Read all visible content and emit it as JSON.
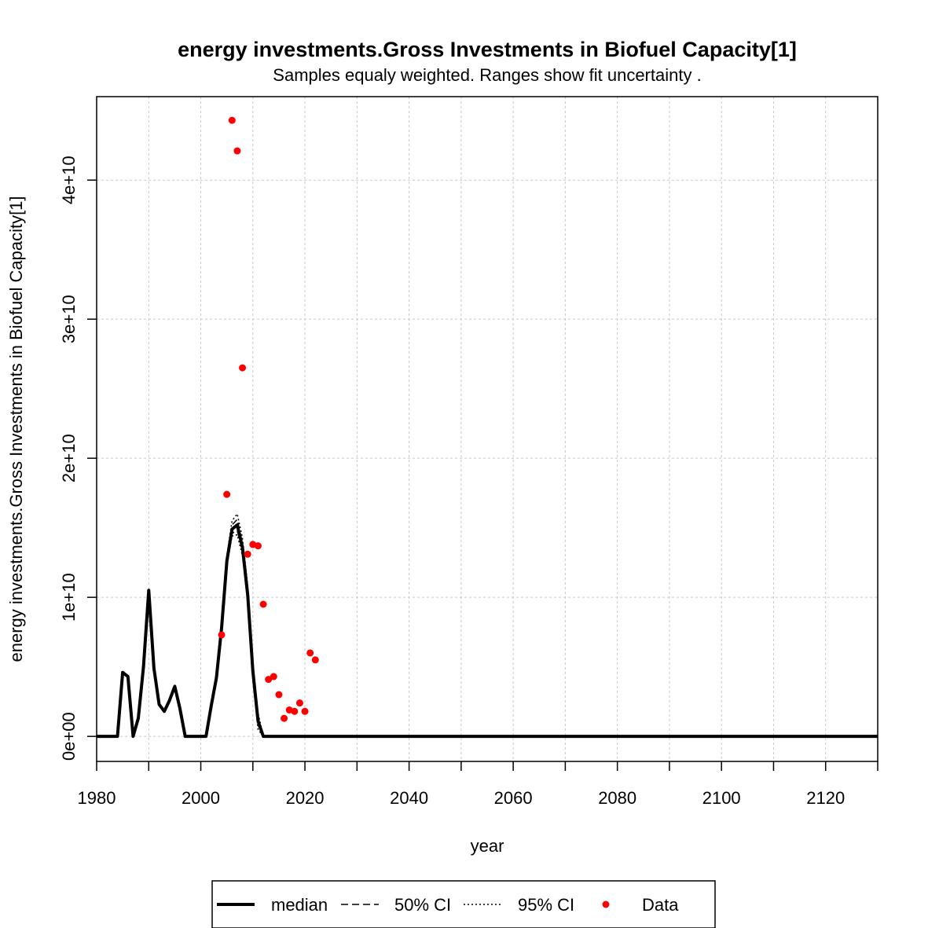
{
  "chart_data": {
    "type": "line",
    "title": "energy investments.Gross Investments in Biofuel Capacity[1]",
    "subtitle": "Samples equaly weighted. Ranges show  fit uncertainty .",
    "xlabel": "year",
    "ylabel": "energy investments.Gross Investments in Biofuel Capacity[1]",
    "xlim": [
      1980,
      2130
    ],
    "ylim": [
      -1800000000,
      46000000000
    ],
    "x_ticks": [
      1980,
      2000,
      2020,
      2040,
      2060,
      2080,
      2100,
      2120
    ],
    "x_tick_labels": [
      "1980",
      "2000",
      "2020",
      "2040",
      "2060",
      "2080",
      "2100",
      "2120"
    ],
    "x_minor_ticks": [
      1990,
      2010,
      2030,
      2050,
      2070,
      2090,
      2110,
      2130
    ],
    "y_ticks": [
      0,
      10000000000,
      20000000000,
      30000000000,
      40000000000
    ],
    "y_tick_labels": [
      "0e+00",
      "1e+10",
      "2e+10",
      "3e+10",
      "4e+10"
    ],
    "grid": true,
    "legend_position": "bottom",
    "legend": [
      {
        "label": "median",
        "style": "solid"
      },
      {
        "label": "50% CI",
        "style": "dashed"
      },
      {
        "label": "95% CI",
        "style": "dotted"
      },
      {
        "label": "Data",
        "style": "point"
      }
    ],
    "colors": {
      "line": "#000000",
      "data": "#ff0000",
      "grid": "#c8c8c8"
    },
    "median": {
      "x": [
        1980,
        1984,
        1985,
        1986,
        1987,
        1988,
        1989,
        1990,
        1991,
        1992,
        1993,
        1994,
        1995,
        1996,
        1997,
        2001,
        2002,
        2003,
        2004,
        2005,
        2006,
        2007,
        2008,
        2009,
        2010,
        2011,
        2012,
        2130
      ],
      "y": [
        0,
        0,
        4600000000,
        4300000000,
        0,
        1300000000,
        5000000000,
        10500000000,
        4900000000,
        2300000000,
        1800000000,
        2600000000,
        3600000000,
        2000000000,
        0,
        0,
        2200000000,
        4200000000,
        7800000000,
        12600000000,
        14900000000,
        15200000000,
        13600000000,
        10200000000,
        4700000000,
        1100000000,
        0,
        0
      ]
    },
    "ci50": {
      "x": [
        2003,
        2004,
        2005,
        2006,
        2007,
        2008,
        2009,
        2010,
        2011,
        2012
      ],
      "upper": [
        4300000000,
        8000000000,
        12800000000,
        15200000000,
        15600000000,
        13900000000,
        10500000000,
        5000000000,
        1400000000,
        0
      ],
      "lower": [
        4100000000,
        7600000000,
        12400000000,
        14600000000,
        14800000000,
        13300000000,
        9900000000,
        4400000000,
        800000000,
        0
      ]
    },
    "ci95": {
      "x": [
        2003,
        2004,
        2005,
        2006,
        2007,
        2008,
        2009,
        2010,
        2011,
        2012
      ],
      "upper": [
        4400000000,
        8200000000,
        13000000000,
        15500000000,
        16000000000,
        14300000000,
        10900000000,
        5400000000,
        1700000000,
        0
      ],
      "lower": [
        4000000000,
        7400000000,
        12200000000,
        14400000000,
        14500000000,
        13000000000,
        9600000000,
        4100000000,
        500000000,
        0
      ]
    },
    "data_points": {
      "x": [
        2004,
        2005,
        2006,
        2007,
        2008,
        2009,
        2010,
        2011,
        2012,
        2013,
        2014,
        2015,
        2016,
        2017,
        2018,
        2019,
        2020,
        2021,
        2022
      ],
      "y": [
        7300000000,
        17400000000,
        44300000000,
        42100000000,
        26500000000,
        13100000000,
        13800000000,
        13700000000,
        9500000000,
        4100000000,
        4300000000,
        3000000000,
        1300000000,
        1900000000,
        1800000000,
        2400000000,
        1800000000,
        6000000000,
        5500000000
      ]
    }
  }
}
